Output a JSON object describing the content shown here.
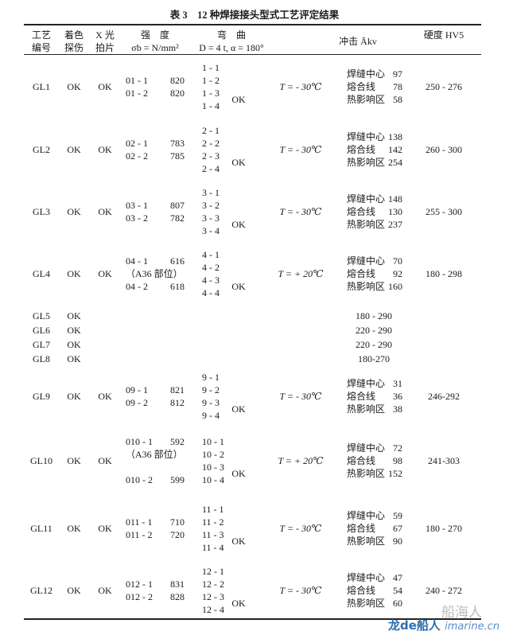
{
  "title": "表 3　12 种焊接接头型式工艺评定结果",
  "headers": {
    "id": [
      "工艺",
      "编号"
    ],
    "dye": [
      "着色",
      "探伤"
    ],
    "xray": [
      "X 光",
      "拍片"
    ],
    "strength": [
      "强　度",
      "σb = N/mm²"
    ],
    "bend": [
      "弯　曲",
      "D = 4 t,  α = 180°"
    ],
    "impact": "冲击 Ākv",
    "hardness": "硬度 HV5"
  },
  "rows": [
    {
      "id": "GL1",
      "dye": "OK",
      "xray": "OK",
      "strength": [
        {
          "spec": "01 - 1",
          "value": "820"
        },
        {
          "spec": "01 - 2",
          "value": "820"
        }
      ],
      "bend": [
        "1 - 1",
        "1 - 2",
        "1 - 3",
        "1 - 4"
      ],
      "bend_ok": "OK",
      "temp": "T = - 30℃",
      "impact": [
        {
          "label": "焊缝中心",
          "value": "97"
        },
        {
          "label": "熔合线",
          "value": "78"
        },
        {
          "label": "热影响区",
          "value": "58"
        }
      ],
      "hardness": "250 - 276"
    },
    {
      "id": "GL2",
      "dye": "OK",
      "xray": "OK",
      "strength": [
        {
          "spec": "02 - 1",
          "value": "783"
        },
        {
          "spec": "02 - 2",
          "value": "785"
        }
      ],
      "bend": [
        "2 - 1",
        "2 - 2",
        "2 - 3",
        "2 - 4"
      ],
      "bend_ok": "OK",
      "temp": "T = - 30℃",
      "impact": [
        {
          "label": "焊缝中心",
          "value": "138"
        },
        {
          "label": "熔合线",
          "value": "142"
        },
        {
          "label": "热影响区",
          "value": "254"
        }
      ],
      "hardness": "260 - 300"
    },
    {
      "id": "GL3",
      "dye": "OK",
      "xray": "OK",
      "strength": [
        {
          "spec": "03 - 1",
          "value": "807"
        },
        {
          "spec": "03 - 2",
          "value": "782"
        }
      ],
      "bend": [
        "3 - 1",
        "3 - 2",
        "3 - 3",
        "3 - 4"
      ],
      "bend_ok": "OK",
      "temp": "T = - 30℃",
      "impact": [
        {
          "label": "焊缝中心",
          "value": "148"
        },
        {
          "label": "熔合线",
          "value": "130"
        },
        {
          "label": "热影响区",
          "value": "237"
        }
      ],
      "hardness": "255 - 300"
    },
    {
      "id": "GL4",
      "dye": "OK",
      "xray": "OK",
      "strength": [
        {
          "spec": "04 - 1",
          "value": "616"
        },
        {
          "note": "（A36 部位）"
        },
        {
          "spec": "04 - 2",
          "value": "618"
        }
      ],
      "bend": [
        "4 - 1",
        "4 - 2",
        "4 - 3",
        "4 - 4"
      ],
      "bend_ok": "OK",
      "temp": "T = + 20℃",
      "impact": [
        {
          "label": "焊缝中心",
          "value": "70"
        },
        {
          "label": "熔合线",
          "value": "92"
        },
        {
          "label": "热影响区",
          "value": "160"
        }
      ],
      "hardness": "180 - 298"
    },
    {
      "id": "GL5",
      "dye": "OK",
      "hardness": "180 - 290"
    },
    {
      "id": "GL6",
      "dye": "OK",
      "hardness": "220 - 290"
    },
    {
      "id": "GL7",
      "dye": "OK",
      "hardness": "220 - 290"
    },
    {
      "id": "GL8",
      "dye": "OK",
      "hardness": "180-270"
    },
    {
      "id": "GL9",
      "dye": "OK",
      "xray": "OK",
      "strength": [
        {
          "spec": "09 - 1",
          "value": "821"
        },
        {
          "spec": "09 - 2",
          "value": "812"
        }
      ],
      "bend": [
        "9 - 1",
        "9 - 2",
        "9 - 3",
        "9 - 4"
      ],
      "bend_ok": "OK",
      "temp": "T = - 30℃",
      "impact": [
        {
          "label": "焊缝中心",
          "value": "31"
        },
        {
          "label": "熔合线",
          "value": "36"
        },
        {
          "label": "热影响区",
          "value": "38"
        }
      ],
      "hardness": "246-292"
    },
    {
      "id": "GL10",
      "dye": "OK",
      "xray": "OK",
      "strength": [
        {
          "spec": "010 - 1",
          "value": "592"
        },
        {
          "note": "（A36 部位）"
        },
        {
          "spacer": true
        },
        {
          "spec": "010 - 2",
          "value": "599"
        }
      ],
      "bend": [
        "10 - 1",
        "10 - 2",
        "10 - 3",
        "10 - 4"
      ],
      "bend_ok": "OK",
      "temp": "T = + 20℃",
      "impact": [
        {
          "label": "焊缝中心",
          "value": "72"
        },
        {
          "label": "熔合线",
          "value": "98"
        },
        {
          "label": "热影响区",
          "value": "152"
        }
      ],
      "hardness": "241-303"
    },
    {
      "id": "GL11",
      "dye": "OK",
      "xray": "OK",
      "strength": [
        {
          "spec": "011 - 1",
          "value": "710"
        },
        {
          "spec": "011 - 2",
          "value": "720"
        }
      ],
      "bend": [
        "11 - 1",
        "11 - 2",
        "11 - 3",
        "11 - 4"
      ],
      "bend_ok": "OK",
      "temp": "T = - 30℃",
      "impact": [
        {
          "label": "焊缝中心",
          "value": "59"
        },
        {
          "label": "熔合线",
          "value": "67"
        },
        {
          "label": "热影响区",
          "value": "90"
        }
      ],
      "hardness": "180 - 270"
    },
    {
      "id": "GL12",
      "dye": "OK",
      "xray": "OK",
      "strength": [
        {
          "spec": "012 - 1",
          "value": "831"
        },
        {
          "spec": "012 - 2",
          "value": "828"
        }
      ],
      "bend": [
        "12 - 1",
        "12 - 2",
        "12 - 3",
        "12 - 4"
      ],
      "bend_ok": "OK",
      "temp": "T = - 30℃",
      "impact": [
        {
          "label": "焊缝中心",
          "value": "47"
        },
        {
          "label": "熔合线",
          "value": "54"
        },
        {
          "label": "热影响区",
          "value": "60"
        }
      ],
      "hardness": "240 - 272"
    }
  ],
  "watermark": {
    "wechat": "船海人",
    "brand": "龙de船人",
    "site": "imarine.cn"
  }
}
